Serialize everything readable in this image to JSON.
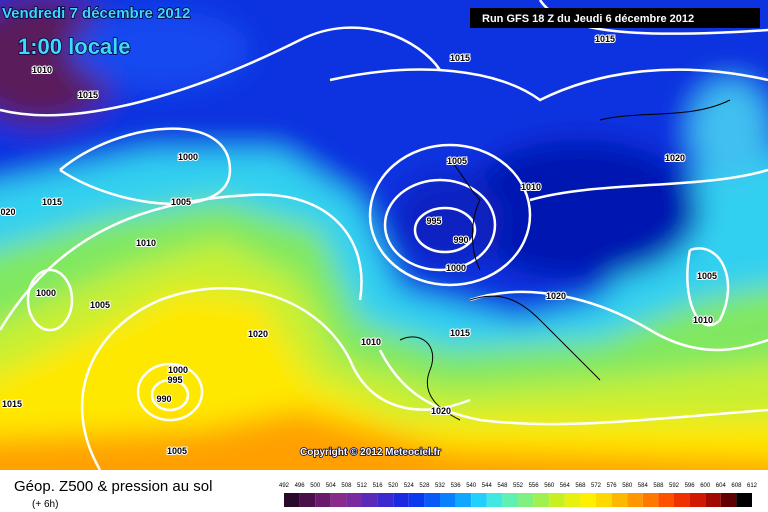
{
  "header": {
    "title": "Vendredi 7 décembre 2012",
    "subtitle": "1:00 locale",
    "run": "Run GFS 18 Z du Jeudi 6 décembre 2012"
  },
  "isobars": [
    "1010",
    "1015",
    "1000",
    "1015",
    "1005",
    "1010",
    "020",
    "1000",
    "1005",
    "1015",
    "1000",
    "995",
    "990",
    "1005",
    "1020",
    "1010",
    "1015",
    "1020",
    "1005",
    "995",
    "990",
    "1000",
    "1010",
    "1015",
    "1015",
    "1020",
    "1005",
    "1010",
    "1020"
  ],
  "copyright": "Copyright © 2012 Meteociel.fr",
  "legend": {
    "title": "Géop. Z500 & pression au sol",
    "lead": "(+ 6h)",
    "labels": [
      492,
      496,
      500,
      504,
      508,
      512,
      516,
      520,
      524,
      528,
      532,
      536,
      540,
      544,
      548,
      552,
      556,
      560,
      564,
      568,
      572,
      576,
      580,
      584,
      588,
      592,
      596,
      600,
      604,
      608,
      612
    ],
    "colors": [
      "#2a0a2a",
      "#4a0f4a",
      "#6a1a6a",
      "#8a2a8a",
      "#7a2aa0",
      "#5a2ab8",
      "#3a2ad0",
      "#1a2ae0",
      "#0a3af0",
      "#0a5af8",
      "#0a80ff",
      "#10a8ff",
      "#20d0ff",
      "#40e8e0",
      "#60f0b0",
      "#80f080",
      "#a0f050",
      "#c8f020",
      "#e8f010",
      "#fff000",
      "#ffd800",
      "#ffb800",
      "#ff9800",
      "#ff7800",
      "#ff5000",
      "#f03000",
      "#d01800",
      "#a00800",
      "#600000",
      "#000000"
    ]
  }
}
